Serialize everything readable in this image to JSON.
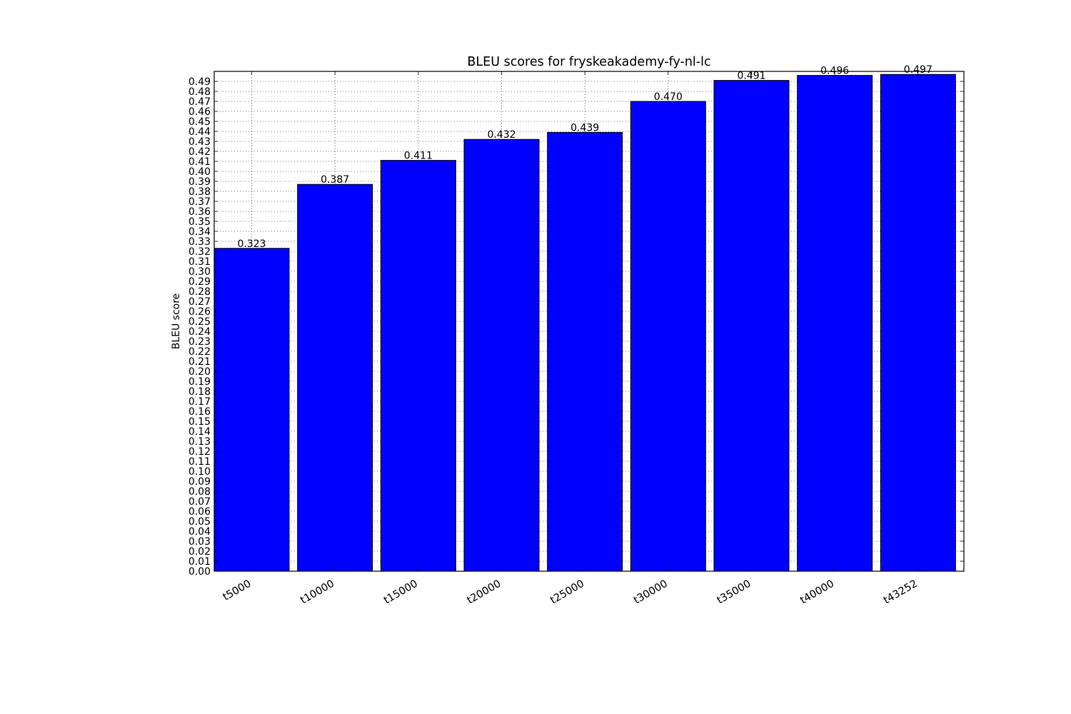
{
  "chart_data": {
    "type": "bar",
    "title": "BLEU scores for fryskeakademy-fy-nl-lc",
    "xlabel": "",
    "ylabel": "BLEU score",
    "categories": [
      "t5000",
      "t10000",
      "t15000",
      "t20000",
      "t25000",
      "t30000",
      "t35000",
      "t40000",
      "t43252"
    ],
    "values": [
      0.323,
      0.387,
      0.411,
      0.432,
      0.439,
      0.47,
      0.491,
      0.496,
      0.497
    ],
    "value_labels": [
      "0.323",
      "0.387",
      "0.411",
      "0.432",
      "0.439",
      "0.470",
      "0.491",
      "0.496",
      "0.497"
    ],
    "ylim": [
      0.0,
      0.5
    ],
    "ytick_step": 0.01,
    "ytick_decimals": 2,
    "grid": true,
    "bar_color": "#0000ff",
    "edge_color": "#000000"
  }
}
